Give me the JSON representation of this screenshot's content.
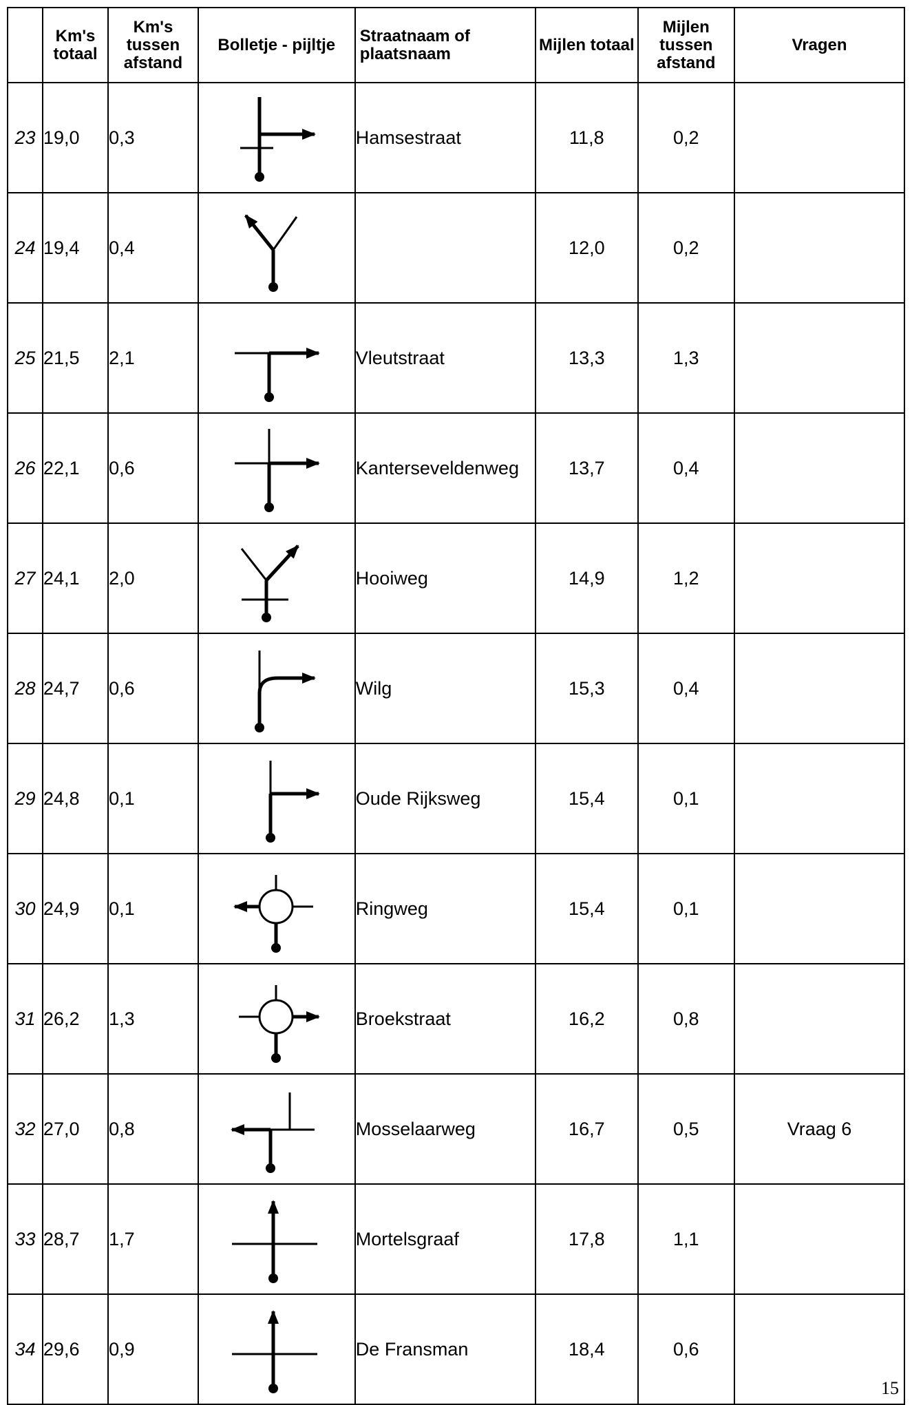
{
  "headers": {
    "num": "",
    "km_total": "Km's totaal",
    "km_between": "Km's tussen afstand",
    "symbol": "Bolletje - pijltje",
    "street": "Straatnaam of plaatsnaam",
    "mi_total": "Mijlen totaal",
    "mi_between": "Mijlen tussen afstand",
    "questions": "Vragen"
  },
  "rows": [
    {
      "num": "23",
      "km_total": "19,0",
      "km_between": "0,3",
      "icon": "junction-right-crossing-icon",
      "street": "Hamsestraat",
      "mi_total": "11,8",
      "mi_between": "0,2",
      "question": ""
    },
    {
      "num": "24",
      "km_total": "19,4",
      "km_between": "0,4",
      "icon": "fork-left-icon",
      "street": "",
      "mi_total": "12,0",
      "mi_between": "0,2",
      "question": ""
    },
    {
      "num": "25",
      "km_total": "21,5",
      "km_between": "2,1",
      "icon": "t-junction-right-icon",
      "street": "Vleutstraat",
      "mi_total": "13,3",
      "mi_between": "1,3",
      "question": ""
    },
    {
      "num": "26",
      "km_total": "22,1",
      "km_between": "0,6",
      "icon": "crossroads-right-icon",
      "street": "Kanterseveldenweg",
      "mi_total": "13,7",
      "mi_between": "0,4",
      "question": ""
    },
    {
      "num": "27",
      "km_total": "24,1",
      "km_between": "2,0",
      "icon": "fork-right-crossing-icon",
      "street": "Hooiweg",
      "mi_total": "14,9",
      "mi_between": "1,2",
      "question": ""
    },
    {
      "num": "28",
      "km_total": "24,7",
      "km_between": "0,6",
      "icon": "curve-right-icon",
      "street": "Wilg",
      "mi_total": "15,3",
      "mi_between": "0,4",
      "question": ""
    },
    {
      "num": "29",
      "km_total": "24,8",
      "km_between": "0,1",
      "icon": "turn-right-icon",
      "street": "Oude Rijksweg",
      "mi_total": "15,4",
      "mi_between": "0,1",
      "question": ""
    },
    {
      "num": "30",
      "km_total": "24,9",
      "km_between": "0,1",
      "icon": "roundabout-left-icon",
      "street": "Ringweg",
      "mi_total": "15,4",
      "mi_between": "0,1",
      "question": ""
    },
    {
      "num": "31",
      "km_total": "26,2",
      "km_between": "1,3",
      "icon": "roundabout-right-icon",
      "street": "Broekstraat",
      "mi_total": "16,2",
      "mi_between": "0,8",
      "question": ""
    },
    {
      "num": "32",
      "km_total": "27,0",
      "km_between": "0,8",
      "icon": "staggered-left-icon",
      "street": "Mosselaarweg",
      "mi_total": "16,7",
      "mi_between": "0,5",
      "question": "Vraag 6"
    },
    {
      "num": "33",
      "km_total": "28,7",
      "km_between": "1,7",
      "icon": "straight-crossroads-icon",
      "street": "Mortelsgraaf",
      "mi_total": "17,8",
      "mi_between": "1,1",
      "question": ""
    },
    {
      "num": "34",
      "km_total": "29,6",
      "km_between": "0,9",
      "icon": "straight-crossroads-icon",
      "street": "De Fransman",
      "mi_total": "18,4",
      "mi_between": "0,6",
      "question": ""
    }
  ],
  "page_number": "15"
}
